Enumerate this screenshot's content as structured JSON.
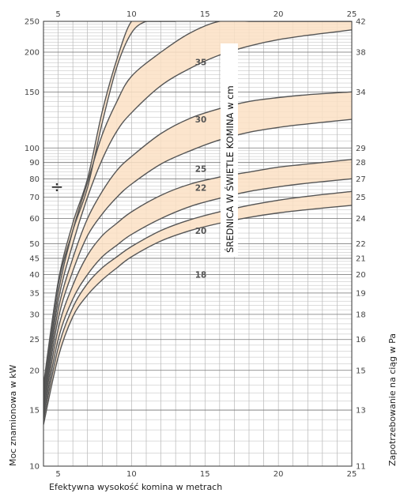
{
  "chart_data": {
    "type": "line",
    "x_ticks": [
      5,
      10,
      15,
      20,
      25
    ],
    "y_ticks_left": [
      10,
      15,
      20,
      25,
      30,
      35,
      40,
      45,
      50,
      60,
      70,
      80,
      90,
      100,
      150,
      200,
      250
    ],
    "y_ticks_right": [
      11,
      13,
      15,
      16,
      18,
      19,
      20,
      21,
      22,
      24,
      25,
      27,
      28,
      29,
      34,
      38,
      42
    ],
    "xlabel": "Efektywna wysokość komina w metrach",
    "ylabel_left": "Moc znamionowa w kW",
    "ylabel_right": "Zapotrzebowanie na ciąg w Pa",
    "band_title": "ŚREDNICA W ŚWIETLE KOMINA w cm",
    "xlim": [
      4,
      25
    ],
    "ylim": [
      10,
      250
    ],
    "y_scale": "log",
    "grid": true,
    "band_color": "#fbe0c4",
    "line_color": "#555555",
    "marker_label": "÷",
    "series": [
      {
        "x": [
          4,
          5,
          6,
          7,
          8,
          9,
          10,
          12,
          14,
          16,
          18,
          20,
          22,
          25
        ],
        "values": [
          13.5,
          22,
          29.5,
          34.5,
          38.5,
          42,
          45.5,
          51,
          55,
          58,
          60.5,
          62.5,
          64,
          66
        ]
      },
      {
        "x": [
          4,
          5,
          6,
          7,
          8,
          9,
          10,
          12,
          14,
          16,
          18,
          20,
          22,
          25
        ],
        "values": [
          14,
          23.5,
          31.5,
          37.5,
          42,
          45.5,
          49,
          55,
          59.5,
          63,
          66,
          68.5,
          70.5,
          73
        ]
      },
      {
        "x": [
          4,
          5,
          6,
          7,
          8,
          9,
          10,
          12,
          14,
          16,
          18,
          20,
          22,
          25
        ],
        "values": [
          14.5,
          25,
          33.5,
          40,
          45.5,
          49.5,
          53.5,
          60,
          65.5,
          69.5,
          73,
          75.5,
          77.5,
          80
        ]
      },
      {
        "x": [
          4,
          5,
          6,
          7,
          8,
          9,
          10,
          12,
          14,
          16,
          18,
          20,
          22,
          25
        ],
        "values": [
          15,
          27,
          37,
          46,
          53,
          58,
          63,
          71,
          77,
          81,
          84,
          87,
          89,
          92
        ]
      },
      {
        "x": [
          4,
          5,
          6,
          7,
          8,
          9,
          10,
          12,
          14,
          16,
          18,
          20,
          22,
          25
        ],
        "values": [
          15.5,
          29,
          41,
          53,
          62,
          70,
          77,
          89,
          98,
          106,
          112,
          116,
          119,
          123
        ]
      },
      {
        "x": [
          4,
          5,
          6,
          7,
          8,
          9,
          10,
          12,
          14,
          16,
          18,
          20,
          22,
          25
        ],
        "values": [
          16,
          31,
          45,
          60,
          73,
          85,
          94,
          111,
          124,
          133,
          140,
          144,
          147,
          150
        ]
      },
      {
        "x": [
          4,
          5,
          6,
          7,
          8,
          9,
          10,
          12,
          14,
          16,
          18,
          20,
          22,
          25
        ],
        "values": [
          16.5,
          33,
          50,
          70,
          92,
          113,
          129,
          157,
          178,
          196,
          209,
          219,
          226,
          235
        ]
      },
      {
        "x": [
          4,
          5,
          6,
          7,
          8,
          9,
          10,
          12,
          14,
          16,
          18,
          20,
          22,
          25
        ],
        "values": [
          17,
          35,
          55,
          78,
          110,
          140,
          168,
          200,
          230,
          255,
          255,
          255,
          255,
          255
        ]
      },
      {
        "x": [
          4,
          5,
          6,
          7,
          8,
          9,
          10,
          11,
          12,
          13
        ],
        "values": [
          17.5,
          37,
          55,
          75,
          120,
          180,
          230,
          255,
          255,
          255
        ]
      },
      {
        "x": [
          4,
          5,
          6,
          7,
          8,
          9,
          10,
          11,
          12
        ],
        "values": [
          18,
          38,
          58,
          80,
          130,
          190,
          250,
          255,
          255
        ]
      }
    ],
    "bands": [
      [
        0,
        1
      ],
      [
        2,
        3
      ],
      [
        4,
        5
      ],
      [
        6,
        7
      ],
      [
        8,
        9
      ]
    ],
    "labels": [
      {
        "text": "18",
        "x": 14,
        "y": 40
      },
      {
        "text": "20",
        "x": 14,
        "y": 55
      },
      {
        "text": "22",
        "x": 14,
        "y": 75
      },
      {
        "text": "25",
        "x": 14,
        "y": 86
      },
      {
        "text": "30",
        "x": 14,
        "y": 123
      },
      {
        "text": "35",
        "x": 14,
        "y": 186
      }
    ]
  }
}
